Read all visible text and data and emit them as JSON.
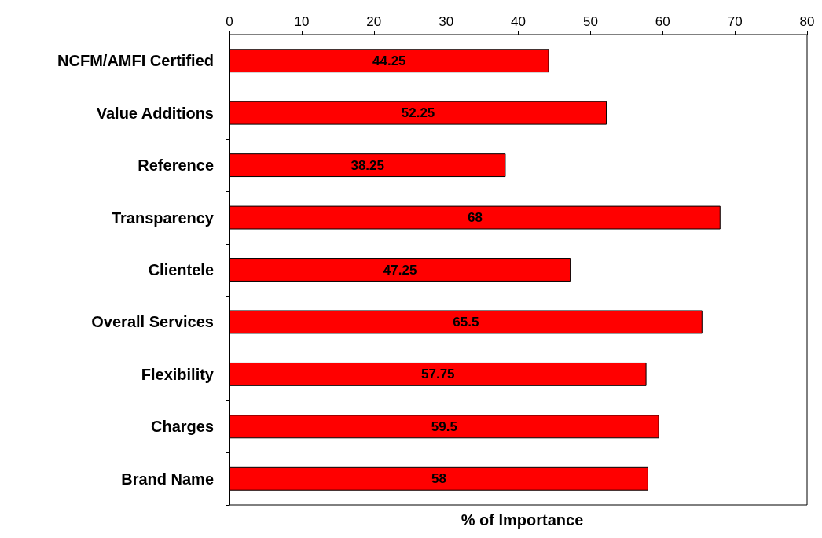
{
  "chart_data": {
    "type": "bar",
    "orientation": "horizontal",
    "xlabel": "% of Importance",
    "categories": [
      "NCFM/AMFI Certified",
      "Value Additions",
      "Reference",
      "Transparency",
      "Clientele",
      "Overall Services",
      "Flexibility",
      "Charges",
      "Brand Name"
    ],
    "values": [
      44.25,
      52.25,
      38.25,
      68,
      47.25,
      65.5,
      57.75,
      59.5,
      58
    ],
    "color": "#ff0000",
    "xlim": [
      0,
      80
    ],
    "xticks": [
      0,
      10,
      20,
      30,
      40,
      50,
      60,
      70,
      80
    ],
    "data_labels": true
  }
}
